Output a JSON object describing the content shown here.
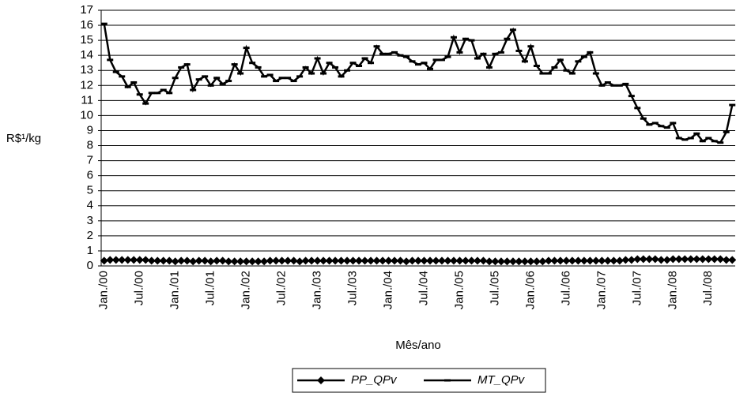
{
  "chart_data": {
    "type": "line",
    "y_label": "R$¹/kg",
    "x_label": "Mês/ano",
    "categories": [
      "Jan./00",
      null,
      null,
      null,
      null,
      null,
      "Jul./00",
      null,
      null,
      null,
      null,
      null,
      "Jan./01",
      null,
      null,
      null,
      null,
      null,
      "Jul./01",
      null,
      null,
      null,
      null,
      null,
      "Jan./02",
      null,
      null,
      null,
      null,
      null,
      "Jul./02",
      null,
      null,
      null,
      null,
      null,
      "Jan./03",
      null,
      null,
      null,
      null,
      null,
      "Jul./03",
      null,
      null,
      null,
      null,
      null,
      "Jan./04",
      null,
      null,
      null,
      null,
      null,
      "Jul./04",
      null,
      null,
      null,
      null,
      null,
      "Jan./05",
      null,
      null,
      null,
      null,
      null,
      "Jul./05",
      null,
      null,
      null,
      null,
      null,
      "Jan./06",
      null,
      null,
      null,
      null,
      null,
      "Jul./06",
      null,
      null,
      null,
      null,
      null,
      "Jan./07",
      null,
      null,
      null,
      null,
      null,
      "Jul./07",
      null,
      null,
      null,
      null,
      null,
      "Jan./08",
      null,
      null,
      null,
      null,
      null,
      "Jul./08",
      null,
      null,
      null,
      null
    ],
    "series": [
      {
        "name": "PP_QPv",
        "color": "#000000",
        "marker": "diamond",
        "values": [
          0.35,
          0.4,
          0.4,
          0.4,
          0.4,
          0.4,
          0.4,
          0.4,
          0.35,
          0.35,
          0.35,
          0.35,
          0.3,
          0.35,
          0.35,
          0.3,
          0.35,
          0.35,
          0.3,
          0.35,
          0.35,
          0.3,
          0.3,
          0.3,
          0.3,
          0.3,
          0.3,
          0.3,
          0.35,
          0.35,
          0.35,
          0.35,
          0.35,
          0.3,
          0.35,
          0.35,
          0.35,
          0.35,
          0.35,
          0.35,
          0.35,
          0.35,
          0.35,
          0.35,
          0.35,
          0.35,
          0.35,
          0.35,
          0.35,
          0.35,
          0.35,
          0.3,
          0.35,
          0.35,
          0.35,
          0.35,
          0.35,
          0.35,
          0.35,
          0.35,
          0.35,
          0.35,
          0.35,
          0.35,
          0.35,
          0.3,
          0.3,
          0.3,
          0.3,
          0.3,
          0.3,
          0.3,
          0.3,
          0.3,
          0.3,
          0.35,
          0.35,
          0.35,
          0.35,
          0.35,
          0.35,
          0.35,
          0.35,
          0.35,
          0.35,
          0.35,
          0.35,
          0.35,
          0.4,
          0.4,
          0.45,
          0.45,
          0.45,
          0.45,
          0.4,
          0.4,
          0.45,
          0.45,
          0.45,
          0.45,
          0.45,
          0.45,
          0.45,
          0.45,
          0.45,
          0.4,
          0.4
        ]
      },
      {
        "name": "MT_QPv",
        "color": "#000000",
        "marker": "dash",
        "values": [
          16.1,
          13.7,
          12.9,
          12.6,
          11.9,
          12.2,
          11.4,
          10.8,
          11.5,
          11.5,
          11.7,
          11.5,
          12.5,
          13.2,
          13.4,
          11.7,
          12.4,
          12.6,
          12.0,
          12.5,
          12.1,
          12.3,
          13.4,
          12.8,
          14.5,
          13.5,
          13.2,
          12.6,
          12.7,
          12.3,
          12.5,
          12.5,
          12.3,
          12.6,
          13.2,
          12.8,
          13.8,
          12.8,
          13.5,
          13.2,
          12.6,
          13.0,
          13.5,
          13.3,
          13.8,
          13.5,
          14.6,
          14.1,
          14.1,
          14.2,
          14.0,
          13.9,
          13.6,
          13.4,
          13.5,
          13.1,
          13.7,
          13.7,
          13.9,
          15.2,
          14.2,
          15.1,
          15.0,
          13.8,
          14.1,
          13.2,
          14.1,
          14.2,
          15.1,
          15.7,
          14.3,
          13.6,
          14.6,
          13.3,
          12.8,
          12.8,
          13.2,
          13.7,
          13.0,
          12.8,
          13.6,
          13.9,
          14.2,
          12.8,
          12.0,
          12.2,
          12.0,
          12.0,
          12.1,
          11.3,
          10.5,
          9.8,
          9.4,
          9.5,
          9.3,
          9.2,
          9.5,
          8.5,
          8.4,
          8.5,
          8.8,
          8.3,
          8.5,
          8.3,
          8.2,
          8.9,
          10.7
        ]
      }
    ],
    "ylim": [
      0,
      17
    ],
    "yticks": [
      0,
      1,
      2,
      3,
      4,
      5,
      6,
      7,
      8,
      9,
      10,
      11,
      12,
      13,
      14,
      15,
      16,
      17
    ],
    "grid": true,
    "legend": "bottom"
  }
}
